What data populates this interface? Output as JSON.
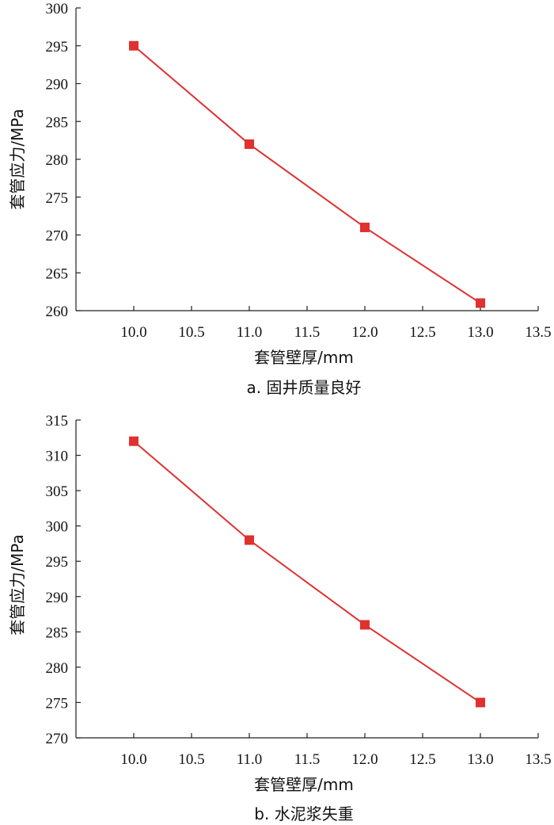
{
  "chart_data": [
    {
      "type": "line",
      "caption": "a. 固井质量良好",
      "xlabel": "套管壁厚/mm",
      "ylabel": "套管应力/MPa",
      "xlim": [
        9.5,
        13.5
      ],
      "ylim": [
        260,
        300
      ],
      "xticks": [
        "10.0",
        "10.5",
        "11.0",
        "11.5",
        "12.0",
        "12.5",
        "13.0",
        "13.5"
      ],
      "yticks": [
        "260",
        "265",
        "270",
        "275",
        "280",
        "285",
        "290",
        "295",
        "300"
      ],
      "grid": false,
      "series": [
        {
          "color": "#e03030",
          "marker": "square",
          "x": [
            10.0,
            11.0,
            12.0,
            13.0
          ],
          "y": [
            295,
            282,
            271,
            261
          ]
        }
      ]
    },
    {
      "type": "line",
      "caption": "b. 水泥浆失重",
      "xlabel": "套管壁厚/mm",
      "ylabel": "套管应力/MPa",
      "xlim": [
        9.5,
        13.5
      ],
      "ylim": [
        270,
        315
      ],
      "xticks": [
        "10.0",
        "10.5",
        "11.0",
        "11.5",
        "12.0",
        "12.5",
        "13.0",
        "13.5"
      ],
      "yticks": [
        "270",
        "275",
        "280",
        "285",
        "290",
        "295",
        "300",
        "305",
        "310",
        "315"
      ],
      "grid": false,
      "series": [
        {
          "color": "#e03030",
          "marker": "square",
          "x": [
            10.0,
            11.0,
            12.0,
            13.0
          ],
          "y": [
            312,
            298,
            286,
            275
          ]
        }
      ]
    }
  ]
}
